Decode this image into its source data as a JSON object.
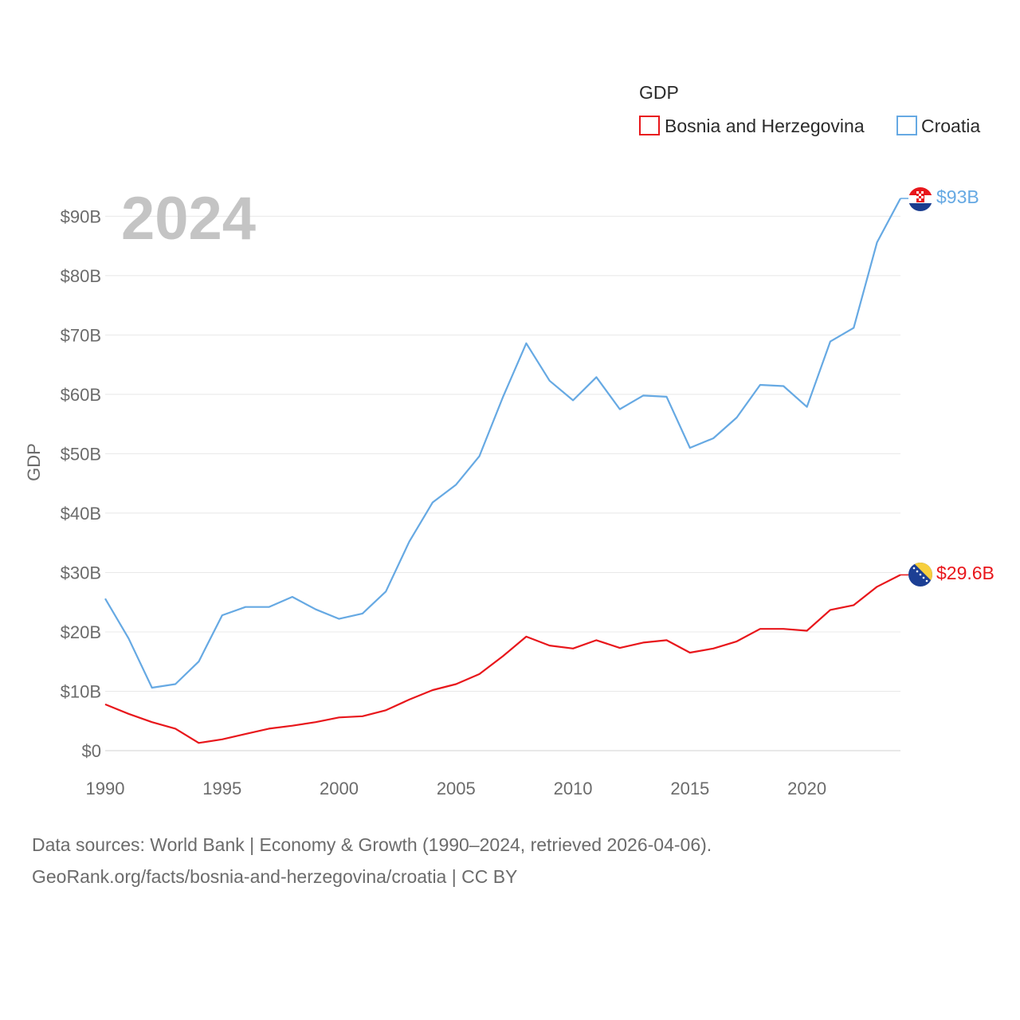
{
  "chart_data": {
    "type": "line",
    "year_label": "2024",
    "legend_title": "GDP",
    "ylabel": "GDP",
    "xlim": [
      1990,
      2024
    ],
    "ylim": [
      0,
      93
    ],
    "x_ticks": [
      1990,
      1995,
      2000,
      2005,
      2010,
      2015,
      2020
    ],
    "x_tick_labels": [
      "1990",
      "1995",
      "2000",
      "2005",
      "2010",
      "2015",
      "2020"
    ],
    "y_ticks": [
      0,
      10,
      20,
      30,
      40,
      50,
      60,
      70,
      80,
      90
    ],
    "y_tick_labels": [
      "$0",
      "$10B",
      "$20B",
      "$30B",
      "$40B",
      "$50B",
      "$60B",
      "$70B",
      "$80B",
      "$90B"
    ],
    "x": [
      1990,
      1991,
      1992,
      1993,
      1994,
      1995,
      1996,
      1997,
      1998,
      1999,
      2000,
      2001,
      2002,
      2003,
      2004,
      2005,
      2006,
      2007,
      2008,
      2009,
      2010,
      2011,
      2012,
      2013,
      2014,
      2015,
      2016,
      2017,
      2018,
      2019,
      2020,
      2021,
      2022,
      2023,
      2024
    ],
    "series": [
      {
        "name": "Bosnia and Herzegovina",
        "color": "#e8161b",
        "end_label": "$29.6B",
        "values": [
          7.8,
          6.2,
          4.8,
          3.7,
          1.3,
          1.9,
          2.8,
          3.7,
          4.2,
          4.8,
          5.6,
          5.8,
          6.8,
          8.6,
          10.2,
          11.2,
          12.9,
          15.9,
          19.2,
          17.7,
          17.2,
          18.6,
          17.3,
          18.2,
          18.6,
          16.5,
          17.2,
          18.4,
          20.5,
          20.5,
          20.2,
          23.7,
          24.5,
          27.6,
          29.6
        ]
      },
      {
        "name": "Croatia",
        "color": "#66a9e3",
        "end_label": "$93B",
        "values": [
          25.6,
          18.9,
          10.6,
          11.2,
          15.0,
          22.8,
          24.2,
          24.2,
          25.9,
          23.8,
          22.2,
          23.1,
          26.8,
          35.2,
          41.8,
          44.8,
          49.6,
          59.5,
          68.6,
          62.3,
          59.0,
          62.9,
          57.5,
          59.8,
          59.6,
          51.0,
          52.6,
          56.1,
          61.6,
          61.4,
          57.9,
          68.9,
          71.2,
          85.6,
          93.0
        ]
      }
    ]
  },
  "footer": {
    "line1": "Data sources: World Bank | Economy & Growth (1990–2024, retrieved 2026-04-06).",
    "line2": "GeoRank.org/facts/bosnia-and-herzegovina/croatia | CC BY"
  }
}
